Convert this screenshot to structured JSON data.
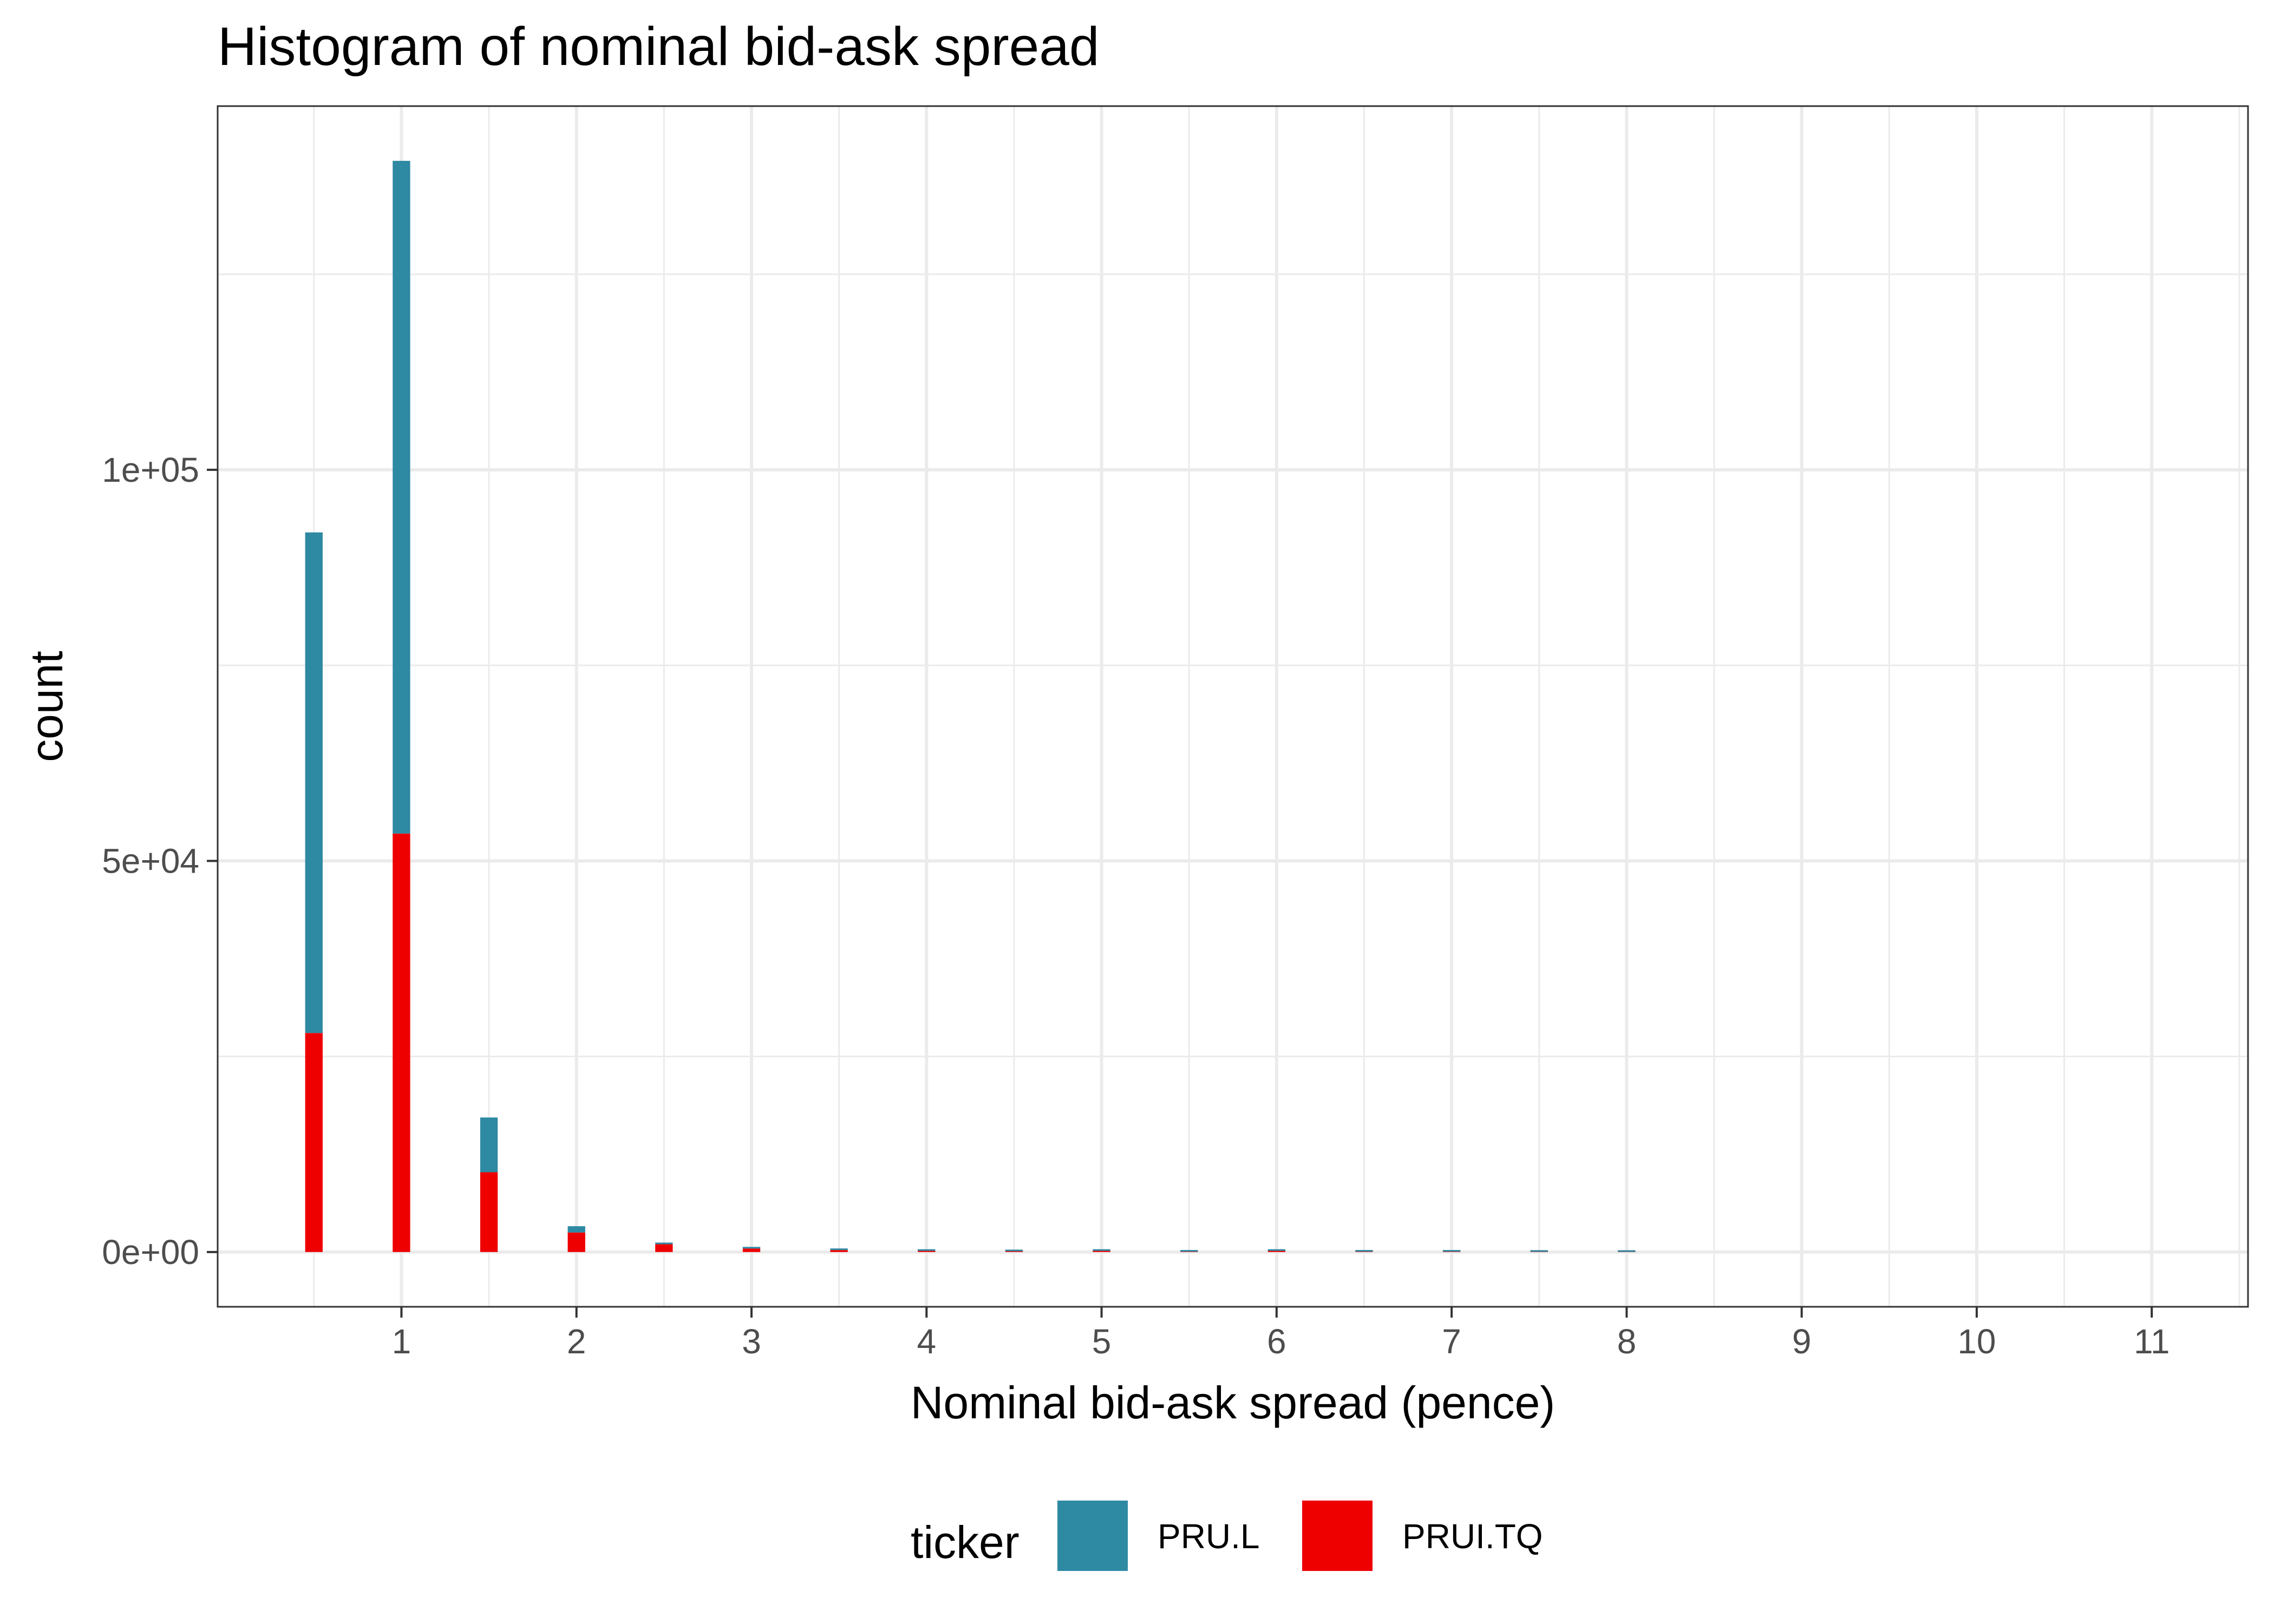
{
  "chart_data": {
    "type": "bar",
    "stacked": true,
    "title": "Histogram of nominal bid-ask spread",
    "xlabel": "Nominal bid-ask spread (pence)",
    "ylabel": "count",
    "xlim": [
      -0.05,
      11.55
    ],
    "ylim": [
      -7000,
      146500
    ],
    "bin_width": 0.1,
    "x_ticks": [
      1,
      2,
      3,
      4,
      5,
      6,
      7,
      8,
      9,
      10,
      11
    ],
    "y_ticks": [
      0,
      50000,
      100000
    ],
    "y_tick_labels": [
      "0e+00",
      "5e+04",
      "1e+05"
    ],
    "grid": true,
    "legend_position": "bottom",
    "legend_title": "ticker",
    "x": [
      0.5,
      1.0,
      1.5,
      2.0,
      2.5,
      3.0,
      3.5,
      4.0,
      4.5,
      5.0,
      5.5,
      6.0,
      6.5,
      7.0,
      7.5,
      8.0
    ],
    "series": [
      {
        "name": "PRUI.TQ",
        "color": "#ee0000",
        "values": [
          28000,
          53500,
          10200,
          2500,
          1000,
          450,
          250,
          150,
          100,
          150,
          50,
          150,
          50,
          50,
          30,
          20
        ]
      },
      {
        "name": "PRU.L",
        "color": "#2e89a3",
        "values": [
          64000,
          86000,
          7000,
          800,
          150,
          60,
          40,
          30,
          20,
          20,
          10,
          10,
          10,
          10,
          5,
          5
        ]
      }
    ],
    "legend_order": [
      "PRU.L",
      "PRUI.TQ"
    ]
  }
}
